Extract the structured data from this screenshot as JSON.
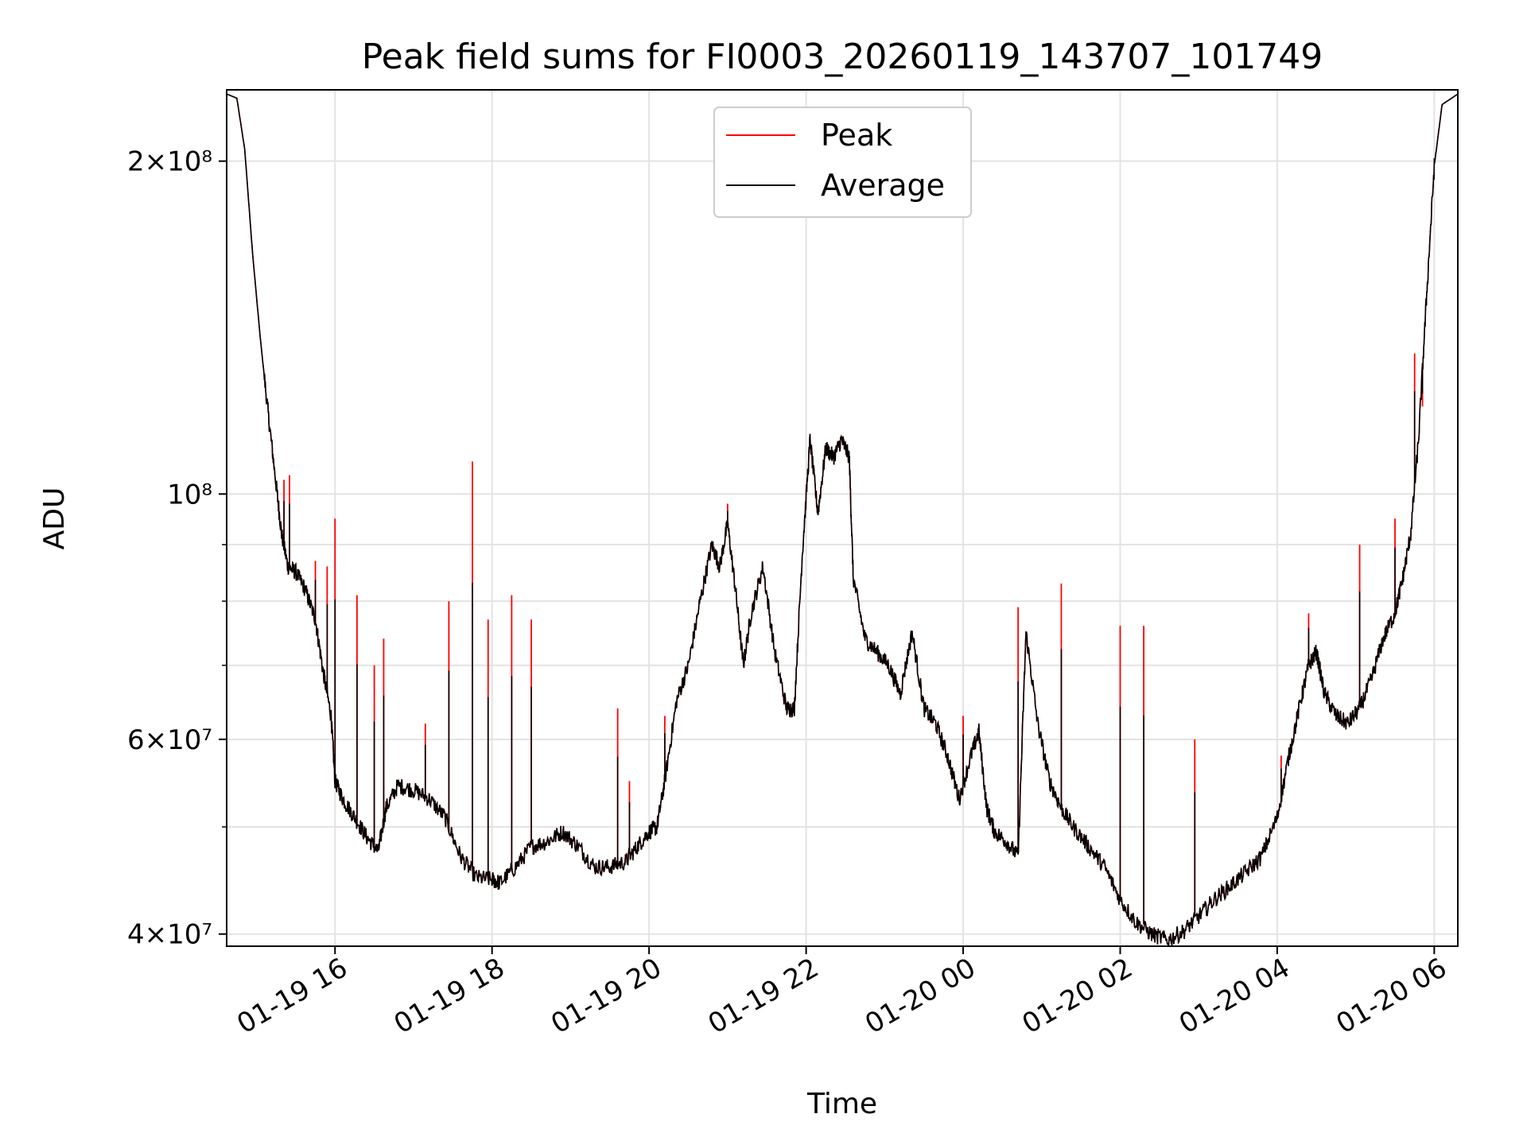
{
  "chart_data": {
    "type": "line",
    "title": "Peak field sums for FI0003_20260119_143707_101749",
    "xlabel": "Time",
    "ylabel": "ADU",
    "yscale": "log",
    "x_unit": "hours since 01-19 00:00",
    "xlim": [
      14.62,
      30.3
    ],
    "ylim": [
      39000000,
      232000000
    ],
    "grid": true,
    "legend_position": "upper center",
    "x_ticks": [
      {
        "value": 16,
        "label": "01-19 16"
      },
      {
        "value": 18,
        "label": "01-19 18"
      },
      {
        "value": 20,
        "label": "01-19 20"
      },
      {
        "value": 22,
        "label": "01-19 22"
      },
      {
        "value": 24,
        "label": "01-20 00"
      },
      {
        "value": 26,
        "label": "01-20 02"
      },
      {
        "value": 28,
        "label": "01-20 04"
      },
      {
        "value": 30,
        "label": "01-20 06"
      }
    ],
    "y_major_ticks": [
      {
        "value": 40000000,
        "label": "4×10⁷"
      },
      {
        "value": 60000000,
        "label": "6×10⁷"
      },
      {
        "value": 100000000,
        "label": "10⁸"
      },
      {
        "value": 200000000,
        "label": "2×10⁸"
      }
    ],
    "y_minor_gridlines": [
      50000000,
      70000000,
      80000000,
      90000000
    ],
    "series": [
      {
        "name": "Average",
        "color": "#000000",
        "points": [
          [
            14.62,
            230000000
          ],
          [
            14.75,
            228000000
          ],
          [
            14.85,
            205000000
          ],
          [
            14.95,
            165000000
          ],
          [
            15.05,
            138000000
          ],
          [
            15.15,
            118000000
          ],
          [
            15.25,
            102000000
          ],
          [
            15.32,
            92000000
          ],
          [
            15.4,
            86000000
          ],
          [
            15.5,
            85000000
          ],
          [
            15.62,
            82000000
          ],
          [
            15.75,
            77000000
          ],
          [
            15.85,
            69000000
          ],
          [
            15.95,
            63000000
          ],
          [
            16.0,
            55000000
          ],
          [
            16.1,
            53000000
          ],
          [
            16.25,
            51000000
          ],
          [
            16.4,
            49000000
          ],
          [
            16.55,
            47500000
          ],
          [
            16.65,
            52000000
          ],
          [
            16.8,
            54500000
          ],
          [
            17.0,
            54000000
          ],
          [
            17.2,
            53000000
          ],
          [
            17.4,
            51000000
          ],
          [
            17.6,
            47000000
          ],
          [
            17.8,
            45000000
          ],
          [
            18.0,
            44800000
          ],
          [
            18.1,
            44500000
          ],
          [
            18.3,
            46000000
          ],
          [
            18.5,
            48000000
          ],
          [
            18.7,
            48500000
          ],
          [
            18.9,
            49500000
          ],
          [
            19.1,
            48000000
          ],
          [
            19.3,
            46000000
          ],
          [
            19.5,
            46000000
          ],
          [
            19.7,
            46500000
          ],
          [
            19.85,
            48000000
          ],
          [
            20.0,
            49500000
          ],
          [
            20.1,
            50000000
          ],
          [
            20.2,
            55000000
          ],
          [
            20.35,
            65000000
          ],
          [
            20.5,
            70000000
          ],
          [
            20.65,
            80000000
          ],
          [
            20.8,
            90000000
          ],
          [
            20.9,
            86000000
          ],
          [
            21.0,
            94000000
          ],
          [
            21.1,
            82000000
          ],
          [
            21.2,
            70000000
          ],
          [
            21.3,
            78000000
          ],
          [
            21.45,
            86000000
          ],
          [
            21.6,
            72000000
          ],
          [
            21.75,
            64000000
          ],
          [
            21.85,
            64000000
          ],
          [
            21.95,
            88000000
          ],
          [
            22.05,
            112000000
          ],
          [
            22.15,
            96000000
          ],
          [
            22.25,
            110000000
          ],
          [
            22.35,
            108000000
          ],
          [
            22.45,
            112000000
          ],
          [
            22.55,
            108000000
          ],
          [
            22.6,
            84000000
          ],
          [
            22.75,
            74000000
          ],
          [
            22.9,
            72000000
          ],
          [
            23.05,
            70000000
          ],
          [
            23.2,
            66000000
          ],
          [
            23.35,
            75000000
          ],
          [
            23.5,
            64000000
          ],
          [
            23.65,
            62000000
          ],
          [
            23.8,
            58000000
          ],
          [
            23.95,
            53000000
          ],
          [
            24.1,
            58000000
          ],
          [
            24.2,
            61000000
          ],
          [
            24.3,
            52000000
          ],
          [
            24.4,
            49500000
          ],
          [
            24.55,
            48500000
          ],
          [
            24.7,
            47000000
          ],
          [
            24.8,
            75000000
          ],
          [
            24.95,
            62000000
          ],
          [
            25.1,
            55000000
          ],
          [
            25.25,
            52000000
          ],
          [
            25.4,
            50000000
          ],
          [
            25.6,
            48000000
          ],
          [
            25.8,
            46000000
          ],
          [
            26.0,
            43000000
          ],
          [
            26.2,
            41000000
          ],
          [
            26.4,
            40000000
          ],
          [
            26.6,
            39500000
          ],
          [
            26.8,
            40200000
          ],
          [
            27.0,
            41500000
          ],
          [
            27.2,
            43000000
          ],
          [
            27.4,
            44200000
          ],
          [
            27.6,
            45500000
          ],
          [
            27.8,
            47000000
          ],
          [
            28.0,
            51000000
          ],
          [
            28.15,
            58000000
          ],
          [
            28.3,
            65000000
          ],
          [
            28.4,
            70000000
          ],
          [
            28.5,
            72000000
          ],
          [
            28.6,
            66000000
          ],
          [
            28.75,
            63000000
          ],
          [
            28.9,
            62000000
          ],
          [
            29.05,
            64000000
          ],
          [
            29.2,
            68000000
          ],
          [
            29.35,
            74000000
          ],
          [
            29.5,
            78000000
          ],
          [
            29.6,
            84000000
          ],
          [
            29.7,
            92000000
          ],
          [
            29.8,
            112000000
          ],
          [
            29.9,
            150000000
          ],
          [
            30.0,
            198000000
          ],
          [
            30.1,
            225000000
          ],
          [
            30.3,
            230000000
          ]
        ]
      },
      {
        "name": "Peak",
        "color": "#ff0000",
        "spikes": [
          [
            15.35,
            103000000
          ],
          [
            15.42,
            104000000
          ],
          [
            15.75,
            87000000
          ],
          [
            15.9,
            86000000
          ],
          [
            16.0,
            95000000
          ],
          [
            16.28,
            81000000
          ],
          [
            16.5,
            70000000
          ],
          [
            16.62,
            74000000
          ],
          [
            17.15,
            62000000
          ],
          [
            17.45,
            80000000
          ],
          [
            17.75,
            107000000
          ],
          [
            17.95,
            77000000
          ],
          [
            18.25,
            81000000
          ],
          [
            18.5,
            77000000
          ],
          [
            19.6,
            64000000
          ],
          [
            19.75,
            55000000
          ],
          [
            20.2,
            63000000
          ],
          [
            21.0,
            98000000
          ],
          [
            23.6,
            62000000
          ],
          [
            24.0,
            63000000
          ],
          [
            24.7,
            79000000
          ],
          [
            25.25,
            83000000
          ],
          [
            26.0,
            76000000
          ],
          [
            26.3,
            76000000
          ],
          [
            26.95,
            60000000
          ],
          [
            28.05,
            58000000
          ],
          [
            28.4,
            78000000
          ],
          [
            29.05,
            90000000
          ],
          [
            29.5,
            95000000
          ],
          [
            29.75,
            134000000
          ],
          [
            29.85,
            120000000
          ]
        ]
      }
    ]
  }
}
